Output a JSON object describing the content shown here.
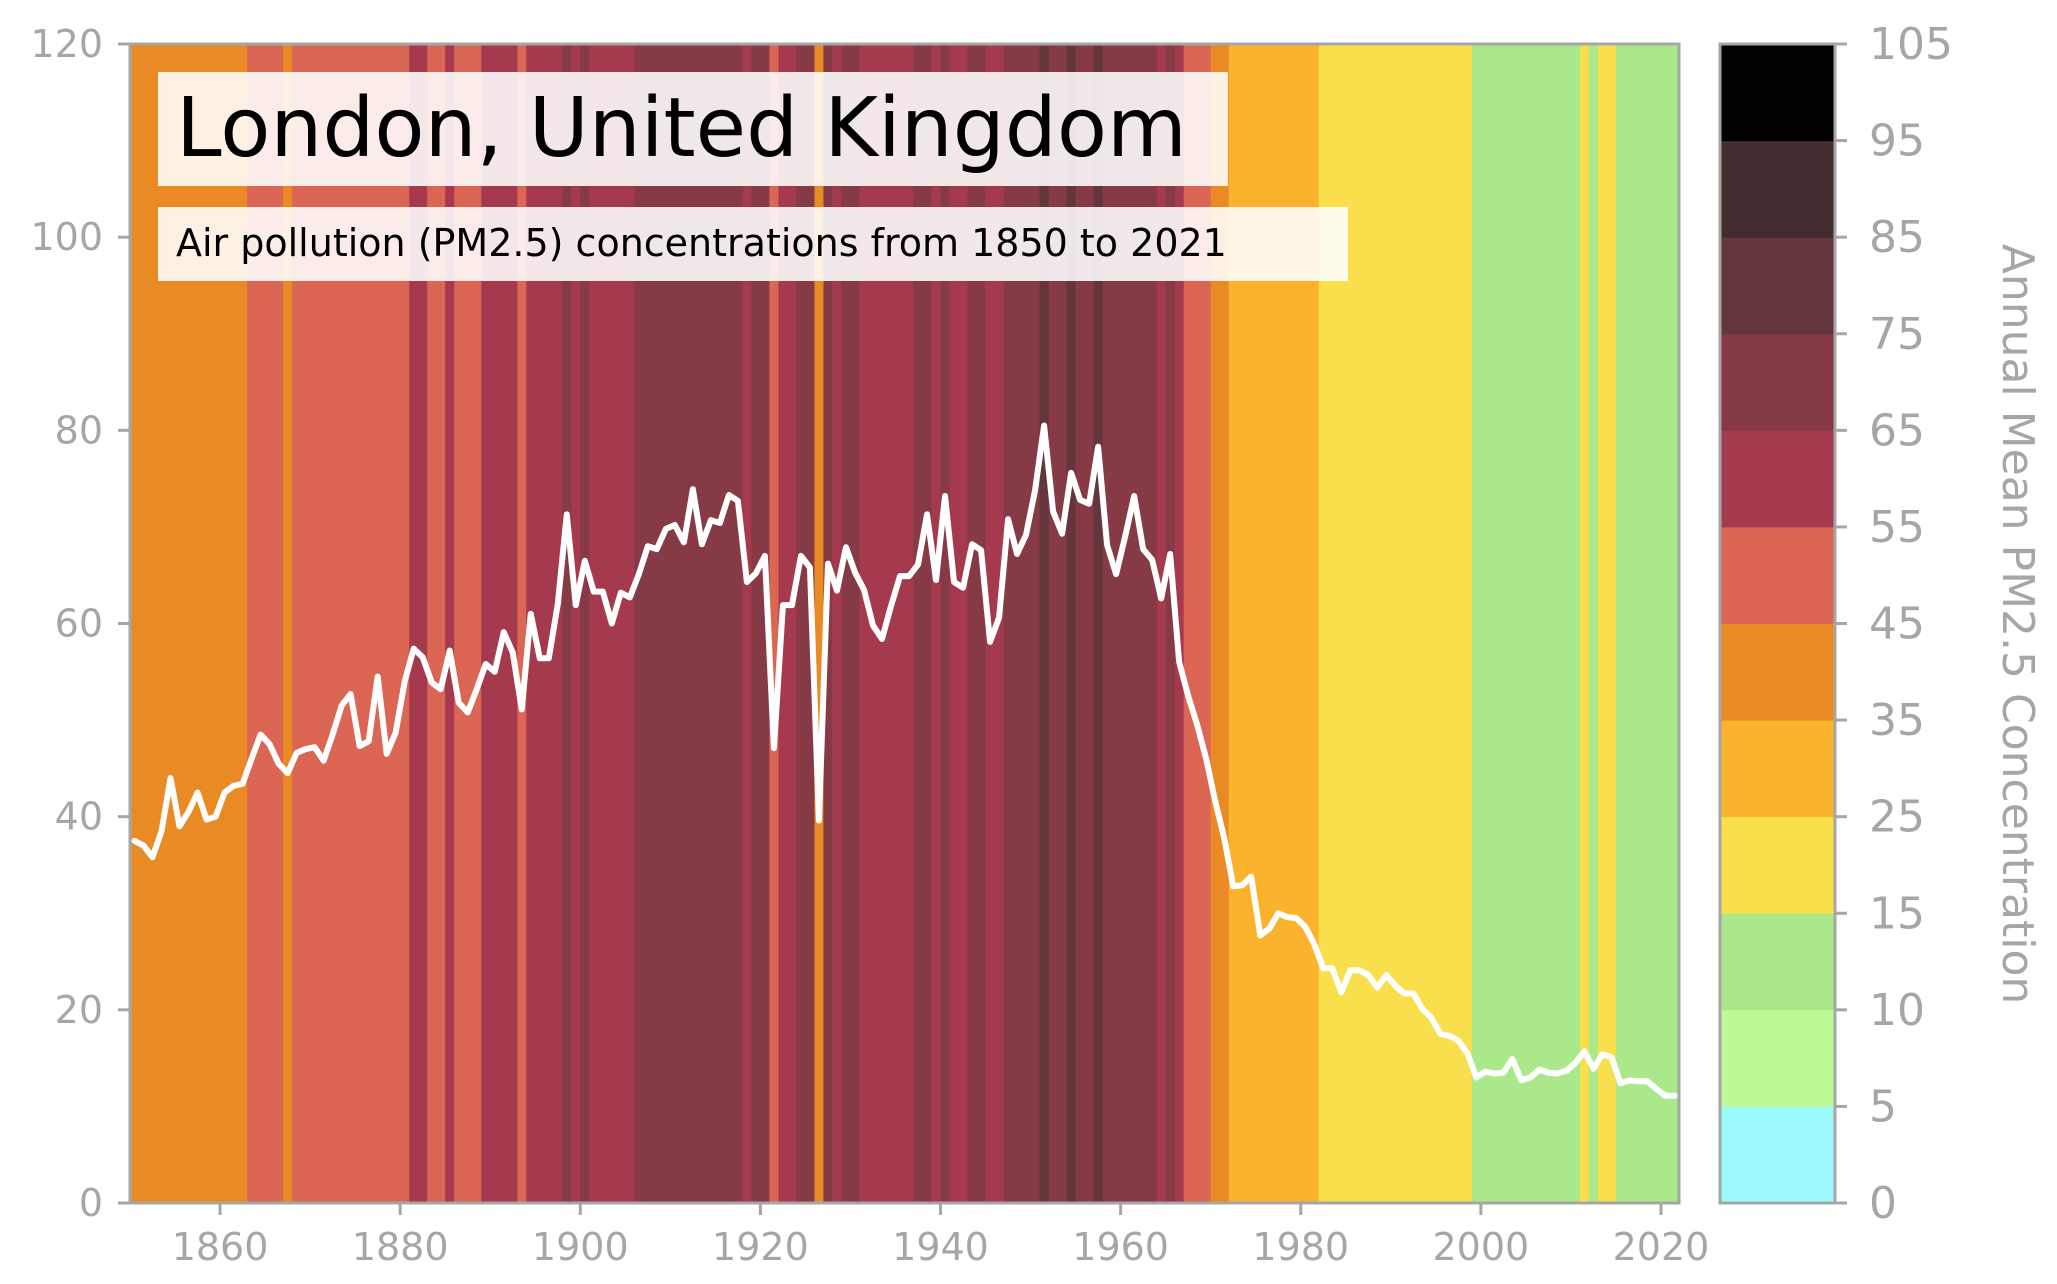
{
  "chart_data": {
    "type": "line",
    "title": "London, United Kingdom",
    "subtitle": "Air pollution (PM2.5) concentrations from 1850 to 2021",
    "xlabel": "",
    "ylabel": "",
    "xlim": [
      1850,
      2022
    ],
    "ylim": [
      0,
      120
    ],
    "x_ticks": [
      1860,
      1880,
      1900,
      1920,
      1940,
      1960,
      1980,
      2000,
      2020
    ],
    "y_ticks": [
      0,
      20,
      40,
      60,
      80,
      100,
      120
    ],
    "grid": false,
    "background": "warming-stripes style vertical bands colored by each year's PM2.5 value",
    "series": [
      {
        "color": "#ffffff",
        "x": [
          1850,
          1851,
          1852,
          1853,
          1854,
          1855,
          1856,
          1857,
          1858,
          1859,
          1860,
          1861,
          1862,
          1863,
          1864,
          1865,
          1866,
          1867,
          1868,
          1869,
          1870,
          1871,
          1872,
          1873,
          1874,
          1875,
          1876,
          1877,
          1878,
          1879,
          1880,
          1881,
          1882,
          1883,
          1884,
          1885,
          1886,
          1887,
          1888,
          1889,
          1890,
          1891,
          1892,
          1893,
          1894,
          1895,
          1896,
          1897,
          1898,
          1899,
          1900,
          1901,
          1902,
          1903,
          1904,
          1905,
          1906,
          1907,
          1908,
          1909,
          1910,
          1911,
          1912,
          1913,
          1914,
          1915,
          1916,
          1917,
          1918,
          1919,
          1920,
          1921,
          1922,
          1923,
          1924,
          1925,
          1926,
          1927,
          1928,
          1929,
          1930,
          1931,
          1932,
          1933,
          1934,
          1935,
          1936,
          1937,
          1938,
          1939,
          1940,
          1941,
          1942,
          1943,
          1944,
          1945,
          1946,
          1947,
          1948,
          1949,
          1950,
          1951,
          1952,
          1953,
          1954,
          1955,
          1956,
          1957,
          1958,
          1959,
          1960,
          1961,
          1962,
          1963,
          1964,
          1965,
          1966,
          1967,
          1968,
          1969,
          1970,
          1971,
          1972,
          1973,
          1974,
          1975,
          1976,
          1977,
          1978,
          1979,
          1980,
          1981,
          1982,
          1983,
          1984,
          1985,
          1986,
          1987,
          1988,
          1989,
          1990,
          1991,
          1992,
          1993,
          1994,
          1995,
          1996,
          1997,
          1998,
          1999,
          2000,
          2001,
          2002,
          2003,
          2004,
          2005,
          2006,
          2007,
          2008,
          2009,
          2010,
          2011,
          2012,
          2013,
          2014,
          2015,
          2016,
          2017,
          2018,
          2019,
          2020,
          2021
        ],
        "values": [
          37.5,
          37,
          35.8,
          38.5,
          44,
          39,
          40.5,
          42.5,
          39.7,
          40,
          42.5,
          43.2,
          43.4,
          46,
          48.5,
          47.5,
          45.5,
          44.5,
          46.6,
          47,
          47.2,
          45.8,
          48.5,
          51.5,
          52.7,
          47.3,
          47.8,
          54.5,
          46.5,
          48.7,
          54,
          57.4,
          56.5,
          53.9,
          53.2,
          57.2,
          51.8,
          50.8,
          53.2,
          55.8,
          55,
          59.1,
          57,
          51.1,
          61,
          56.4,
          56.4,
          62,
          71.3,
          61.9,
          66.5,
          63.3,
          63.3,
          60,
          63.2,
          62.7,
          65.1,
          68,
          67.7,
          69.8,
          70.2,
          68.4,
          73.9,
          68.2,
          70.7,
          70.4,
          73.3,
          72.7,
          64.3,
          65.2,
          67,
          47.1,
          61.9,
          61.9,
          67,
          65.8,
          39.6,
          66.2,
          63.4,
          67.9,
          65.3,
          63.5,
          59.8,
          58.4,
          61.8,
          64.9,
          64.9,
          66.1,
          71.3,
          64.5,
          73.2,
          64.3,
          63.7,
          68.2,
          67.6,
          58.1,
          60.6,
          70.8,
          67.2,
          69.2,
          73.8,
          80.5,
          71.6,
          69.3,
          75.6,
          72.8,
          72.4,
          78.3,
          68.1,
          65.1,
          69,
          73.2,
          67.7,
          66.6,
          62.6,
          67.2,
          56,
          52.5,
          49.5,
          46,
          41.6,
          37.8,
          32.8,
          32.9,
          33.8,
          27.7,
          28.4,
          30,
          29.6,
          29.5,
          28.6,
          26.8,
          24.3,
          24.3,
          21.8,
          24.1,
          24.1,
          23.6,
          22.3,
          23.6,
          22.5,
          21.7,
          21.7,
          20.1,
          19.2,
          17.5,
          17.3,
          16.8,
          15.5,
          13,
          13.6,
          13.4,
          13.5,
          14.9,
          12.7,
          13,
          13.8,
          13.5,
          13.4,
          13.7,
          14.5,
          15.7,
          13.9,
          15.4,
          15.1,
          12.4,
          12.7,
          12.6,
          12.6,
          11.8,
          11.1,
          11.1
        ]
      }
    ],
    "colorbar": {
      "label": "Annual Mean PM2.5 Concentration",
      "ticks": [
        0,
        5,
        10,
        15,
        25,
        35,
        45,
        55,
        65,
        75,
        85,
        95,
        105
      ],
      "colors": [
        "#9cfaff",
        "#bdfa95",
        "#abe88b",
        "#f9df4b",
        "#fbb32e",
        "#e98a25",
        "#dc6654",
        "#a53a4e",
        "#863a46",
        "#62363a",
        "#432c2e",
        "#000000"
      ]
    }
  }
}
